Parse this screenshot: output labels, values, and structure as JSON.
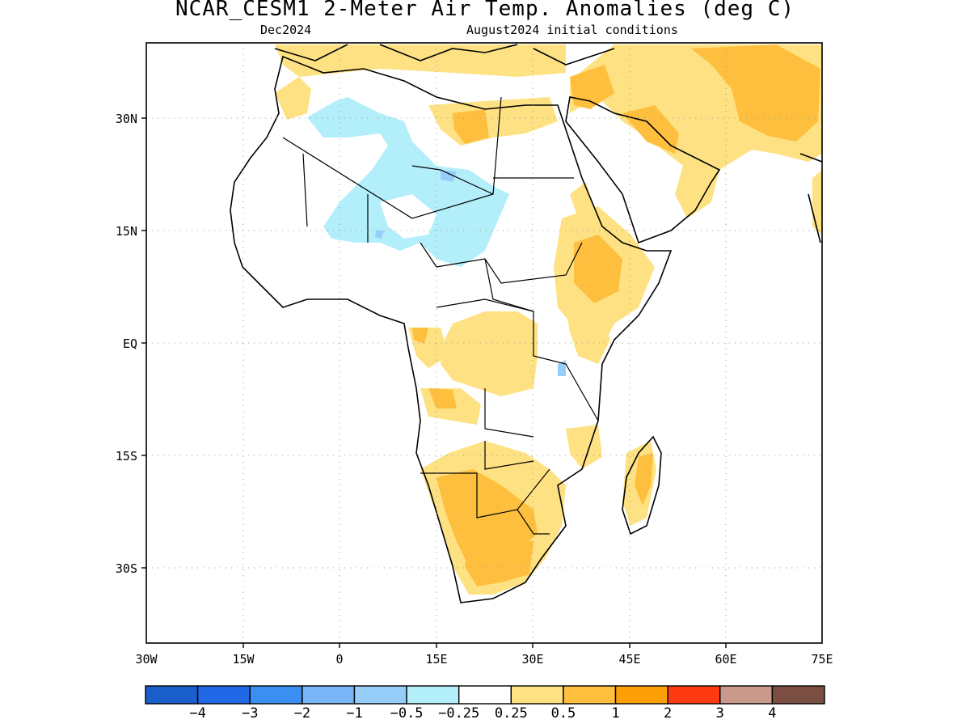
{
  "header": {
    "title": "NCAR_CESM1 2-Meter Air Temp. Anomalies (deg C)",
    "subtitle_left": "Dec2024",
    "subtitle_right": "August2024 initial conditions"
  },
  "map": {
    "lon_range": [
      -30,
      75
    ],
    "lat_range": [
      -40,
      40
    ],
    "lon_ticks": [
      "30W",
      "15W",
      "0",
      "15E",
      "30E",
      "45E",
      "60E",
      "75E"
    ],
    "lat_ticks": [
      "30N",
      "15N",
      "EQ",
      "15S",
      "30S"
    ],
    "grid": "dotted"
  },
  "colorbar": {
    "colors": [
      "#1a5ecc",
      "#2168e6",
      "#3c8ff2",
      "#78b6f7",
      "#97cdf9",
      "#b3eefb",
      "#ffffff",
      "#fee182",
      "#fdbf3d",
      "#fe9f08",
      "#fd3a12",
      "#c9998c",
      "#7a4f42"
    ],
    "labels": [
      "-4",
      "-3",
      "-2",
      "-1",
      "-0.5",
      "-0.25",
      "0.25",
      "0.5",
      "1",
      "2",
      "3",
      "4"
    ]
  },
  "shading": {
    "light_orange": "#fee182",
    "orange": "#fdbf3d",
    "light_blue": "#b3eefb",
    "medium_blue": "#97cdf9"
  }
}
